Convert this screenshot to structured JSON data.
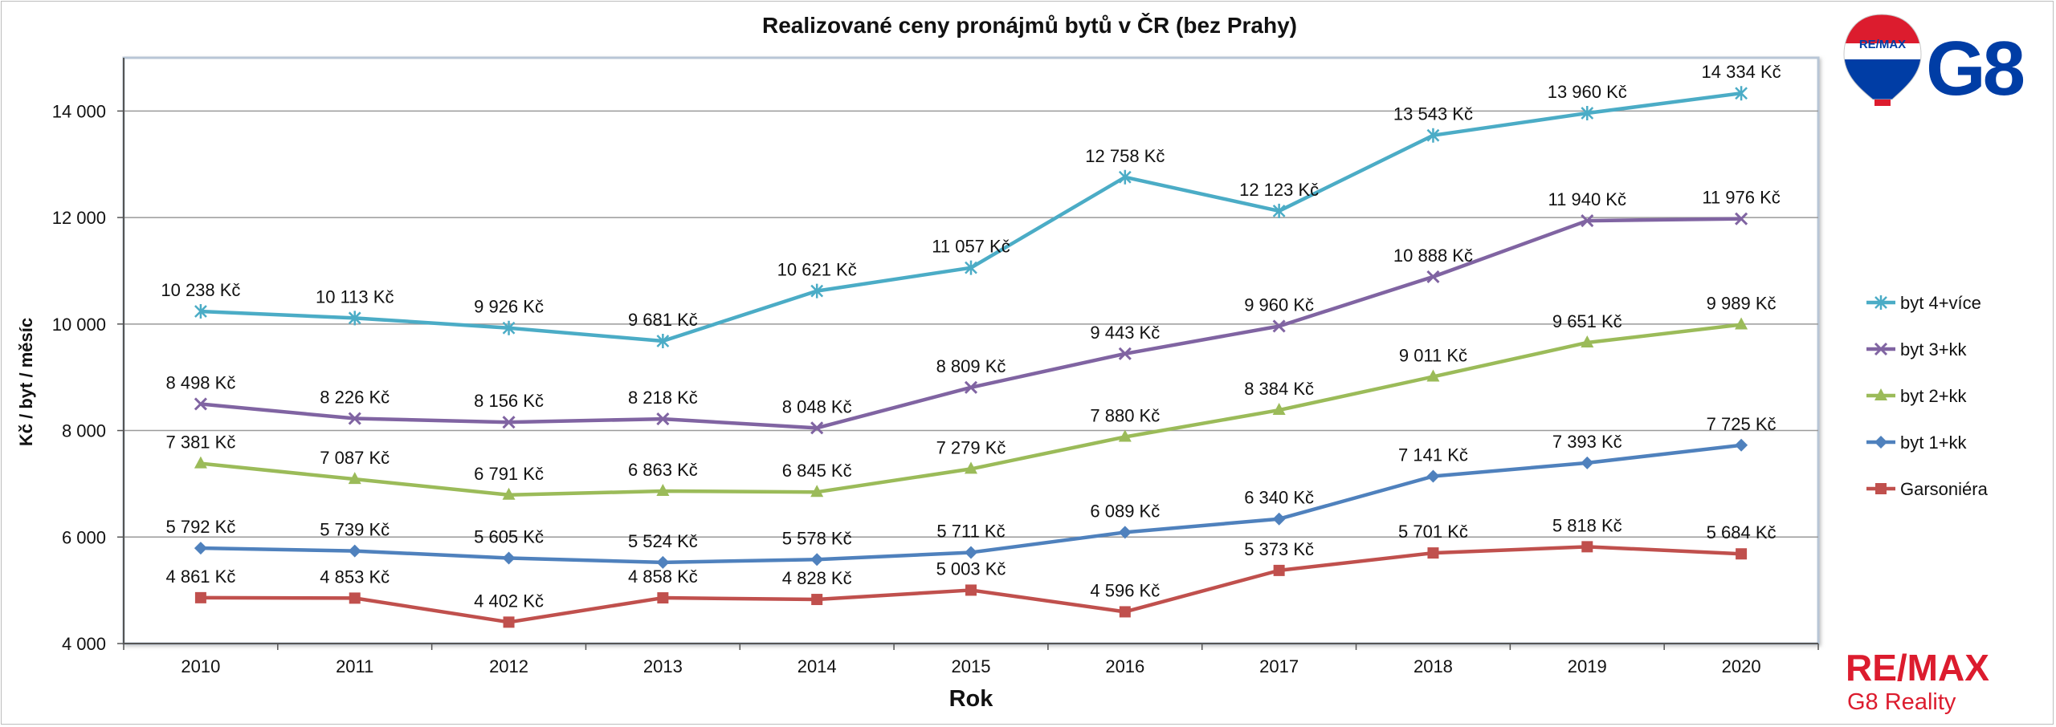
{
  "chart_data": {
    "type": "line",
    "title": "Realizované ceny pronájmů bytů v ČR (bez Prahy)",
    "xlabel": "Rok",
    "ylabel": "Kč / byt / měsíc",
    "x": [
      "2010",
      "2011",
      "2012",
      "2013",
      "2014",
      "2015",
      "2016",
      "2017",
      "2018",
      "2019",
      "2020"
    ],
    "ylim": [
      4000,
      15000
    ],
    "yticks": [
      4000,
      6000,
      8000,
      10000,
      12000,
      14000
    ],
    "ytick_labels": [
      "4 000",
      "6 000",
      "8 000",
      "10 000",
      "12 000",
      "14 000"
    ],
    "grid": "horizontal",
    "legend_position": "right",
    "series": [
      {
        "name": "byt 4+více",
        "color": "#4bacc6",
        "marker": "star",
        "values": [
          10238,
          10113,
          9926,
          9681,
          10621,
          11057,
          12758,
          12123,
          13543,
          13960,
          14334
        ],
        "labels": [
          "10 238 Kč",
          "10 113 Kč",
          "9 926 Kč",
          "9 681 Kč",
          "10 621 Kč",
          "11 057 Kč",
          "12 758 Kč",
          "12 123 Kč",
          "13 543 Kč",
          "13 960 Kč",
          "14 334 Kč"
        ]
      },
      {
        "name": "byt 3+kk",
        "color": "#8064a2",
        "marker": "x",
        "values": [
          8498,
          8226,
          8156,
          8218,
          8048,
          8809,
          9443,
          9960,
          10888,
          11940,
          11976
        ],
        "labels": [
          "8 498 Kč",
          "8 226 Kč",
          "8 156 Kč",
          "8 218 Kč",
          "8 048 Kč",
          "8 809 Kč",
          "9 443 Kč",
          "9 960 Kč",
          "10 888 Kč",
          "11 940 Kč",
          "11 976 Kč"
        ]
      },
      {
        "name": "byt 2+kk",
        "color": "#9bbb59",
        "marker": "triangle",
        "values": [
          7381,
          7087,
          6791,
          6863,
          6845,
          7279,
          7880,
          8384,
          9011,
          9651,
          9989
        ],
        "labels": [
          "7 381 Kč",
          "7 087 Kč",
          "6 791 Kč",
          "6 863 Kč",
          "6 845 Kč",
          "7 279 Kč",
          "7 880 Kč",
          "8 384 Kč",
          "9 011 Kč",
          "9 651 Kč",
          "9 989 Kč"
        ]
      },
      {
        "name": "byt 1+kk",
        "color": "#4f81bd",
        "marker": "diamond",
        "values": [
          5792,
          5739,
          5605,
          5524,
          5578,
          5711,
          6089,
          6340,
          7141,
          7393,
          7725
        ],
        "labels": [
          "5 792 Kč",
          "5 739 Kč",
          "5 605 Kč",
          "5 524 Kč",
          "5 578 Kč",
          "5 711 Kč",
          "6 089 Kč",
          "6 340 Kč",
          "7 141 Kč",
          "7 393 Kč",
          "7 725 Kč"
        ]
      },
      {
        "name": "Garsoniéra",
        "color": "#c0504d",
        "marker": "square",
        "values": [
          4861,
          4853,
          4402,
          4858,
          4828,
          5003,
          4596,
          5373,
          5701,
          5818,
          5684
        ],
        "labels": [
          "4 861 Kč",
          "4 853 Kč",
          "4 402 Kč",
          "4 858 Kč",
          "4 828 Kč",
          "5 003 Kč",
          "4 596 Kč",
          "5 373 Kč",
          "5 701 Kč",
          "5 818 Kč",
          "5 684 Kč"
        ]
      }
    ]
  },
  "branding": {
    "balloon_text": "RE/MAX",
    "mark": "G8",
    "company_line1": "RE/MAX",
    "company_line2": "G8 Reality",
    "brand_red": "#dc1c2e",
    "brand_blue": "#003da5"
  }
}
